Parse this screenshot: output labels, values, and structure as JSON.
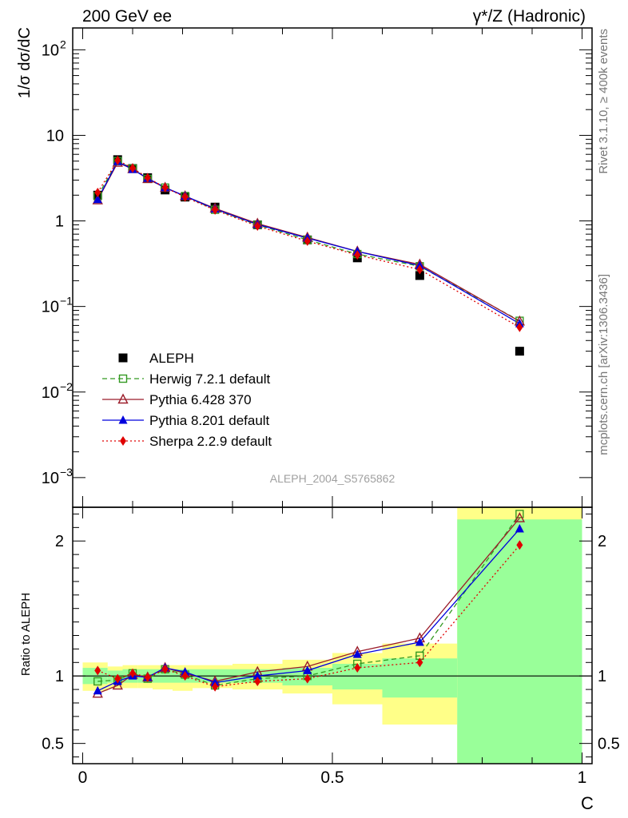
{
  "header": {
    "left_title": "200 GeV ee",
    "right_title": "γ*/Z (Hadronic)"
  },
  "side_labels": {
    "rivet": "Rivet 3.1.10, ≥ 400k events",
    "mcplots": "mcplots.cern.ch [arXiv:1306.3436]"
  },
  "analysis_id": "ALEPH_2004_S5765862",
  "colors": {
    "data": "#000000",
    "herwig": "#339922",
    "pythia6": "#9b1c2a",
    "pythia8": "#0000dd",
    "sherpa": "#e00000",
    "band_yellow": "#ffff88",
    "band_green": "#99ff99"
  },
  "chart_data": [
    {
      "type": "line",
      "ylabel": "1/σ  dσ/dC",
      "yscale": "log",
      "ylim": [
        0.00045,
        180
      ],
      "xlim": [
        -0.02,
        1.02
      ],
      "y_ticks": [
        {
          "v": 0.001,
          "label": "10",
          "exp": "−3"
        },
        {
          "v": 0.01,
          "label": "10",
          "exp": "−2"
        },
        {
          "v": 0.1,
          "label": "10",
          "exp": "−1"
        },
        {
          "v": 1,
          "label": "1",
          "exp": ""
        },
        {
          "v": 10,
          "label": "10",
          "exp": ""
        },
        {
          "v": 100,
          "label": "10",
          "exp": "2"
        }
      ],
      "x": [
        0.03,
        0.07,
        0.1,
        0.13,
        0.165,
        0.205,
        0.265,
        0.35,
        0.45,
        0.55,
        0.675,
        0.875
      ],
      "series": [
        {
          "name": "ALEPH",
          "key": "data",
          "marker": "square-filled",
          "values": [
            2.0,
            5.2,
            4.1,
            3.2,
            2.3,
            1.9,
            1.45,
            0.9,
            0.6,
            0.37,
            0.23,
            0.03
          ]
        },
        {
          "name": "Herwig 7.2.1 default",
          "key": "herwig",
          "marker": "square-open",
          "dash": "6,4",
          "values": [
            1.95,
            5.0,
            4.1,
            3.1,
            2.45,
            1.95,
            1.35,
            0.9,
            0.6,
            0.41,
            0.295,
            0.068
          ]
        },
        {
          "name": "Pythia 6.428 370",
          "key": "pythia6",
          "marker": "triangle-open",
          "dash": "",
          "values": [
            1.75,
            4.8,
            4.05,
            3.1,
            2.45,
            1.95,
            1.4,
            0.93,
            0.64,
            0.44,
            0.31,
            0.067
          ]
        },
        {
          "name": "Pythia 8.201 default",
          "key": "pythia8",
          "marker": "triangle-filled",
          "dash": "",
          "values": [
            1.78,
            4.95,
            4.0,
            3.15,
            2.45,
            1.95,
            1.38,
            0.91,
            0.63,
            0.44,
            0.3,
            0.063
          ]
        },
        {
          "name": "Sherpa 2.2.9 default",
          "key": "sherpa",
          "marker": "diamond-filled",
          "dash": "2,3",
          "values": [
            2.15,
            5.1,
            4.15,
            3.2,
            2.45,
            1.9,
            1.34,
            0.87,
            0.58,
            0.4,
            0.27,
            0.057
          ]
        }
      ],
      "legend_position": "lower-left"
    },
    {
      "type": "line",
      "ylabel": "Ratio to ALEPH",
      "xlabel": "C",
      "ylim": [
        0.35,
        2.25
      ],
      "xlim": [
        -0.02,
        1.02
      ],
      "y_ticks": [
        {
          "v": 0.5,
          "label": "0.5"
        },
        {
          "v": 1,
          "label": "1"
        },
        {
          "v": 2,
          "label": "2"
        }
      ],
      "x_ticks": [
        {
          "v": 0,
          "label": "0"
        },
        {
          "v": 0.5,
          "label": "0.5"
        },
        {
          "v": 1,
          "label": "1"
        }
      ],
      "bands": [
        {
          "x0": 0.0,
          "x1": 0.05,
          "yel_lo": 0.89,
          "yel_hi": 1.1,
          "grn_lo": 0.94,
          "grn_hi": 1.06
        },
        {
          "x0": 0.05,
          "x1": 0.08,
          "yel_lo": 0.91,
          "yel_hi": 1.07,
          "grn_lo": 0.95,
          "grn_hi": 1.04
        },
        {
          "x0": 0.08,
          "x1": 0.11,
          "yel_lo": 0.91,
          "yel_hi": 1.08,
          "grn_lo": 0.95,
          "grn_hi": 1.05
        },
        {
          "x0": 0.11,
          "x1": 0.14,
          "yel_lo": 0.91,
          "yel_hi": 1.08,
          "grn_lo": 0.95,
          "grn_hi": 1.05
        },
        {
          "x0": 0.14,
          "x1": 0.18,
          "yel_lo": 0.9,
          "yel_hi": 1.08,
          "grn_lo": 0.95,
          "grn_hi": 1.05
        },
        {
          "x0": 0.18,
          "x1": 0.22,
          "yel_lo": 0.89,
          "yel_hi": 1.08,
          "grn_lo": 0.95,
          "grn_hi": 1.05
        },
        {
          "x0": 0.22,
          "x1": 0.3,
          "yel_lo": 0.91,
          "yel_hi": 1.08,
          "grn_lo": 0.95,
          "grn_hi": 1.05
        },
        {
          "x0": 0.3,
          "x1": 0.4,
          "yel_lo": 0.9,
          "yel_hi": 1.09,
          "grn_lo": 0.95,
          "grn_hi": 1.05
        },
        {
          "x0": 0.4,
          "x1": 0.5,
          "yel_lo": 0.87,
          "yel_hi": 1.12,
          "grn_lo": 0.93,
          "grn_hi": 1.06
        },
        {
          "x0": 0.5,
          "x1": 0.6,
          "yel_lo": 0.79,
          "yel_hi": 1.17,
          "grn_lo": 0.9,
          "grn_hi": 1.09
        },
        {
          "x0": 0.6,
          "x1": 0.75,
          "yel_lo": 0.64,
          "yel_hi": 1.24,
          "grn_lo": 0.84,
          "grn_hi": 1.13
        },
        {
          "x0": 0.75,
          "x1": 1.0,
          "yel_lo": 0.35,
          "yel_hi": 2.25,
          "grn_lo": 0.35,
          "grn_hi": 2.16
        }
      ],
      "series": [
        {
          "name": "Herwig 7.2.1 default",
          "key": "herwig",
          "marker": "square-open",
          "dash": "6,4",
          "values": [
            0.96,
            0.97,
            1.02,
            0.98,
            1.05,
            1.01,
            0.93,
            0.98,
            1.0,
            1.09,
            1.15,
            2.2
          ]
        },
        {
          "name": "Pythia 6.428 370",
          "key": "pythia6",
          "marker": "triangle-open",
          "dash": "",
          "values": [
            0.87,
            0.93,
            1.01,
            0.99,
            1.06,
            1.02,
            0.96,
            1.03,
            1.07,
            1.18,
            1.28,
            2.17
          ]
        },
        {
          "name": "Pythia 8.201 default",
          "key": "pythia8",
          "marker": "triangle-filled",
          "dash": "",
          "values": [
            0.89,
            0.96,
            1.0,
            0.99,
            1.06,
            1.03,
            0.95,
            1.0,
            1.04,
            1.16,
            1.25,
            2.09
          ]
        },
        {
          "name": "Sherpa 2.2.9 default",
          "key": "sherpa",
          "marker": "diamond-filled",
          "dash": "2,3",
          "values": [
            1.04,
            0.98,
            1.02,
            0.99,
            1.05,
            1.0,
            0.92,
            0.96,
            0.98,
            1.06,
            1.1,
            1.97
          ]
        }
      ]
    }
  ]
}
